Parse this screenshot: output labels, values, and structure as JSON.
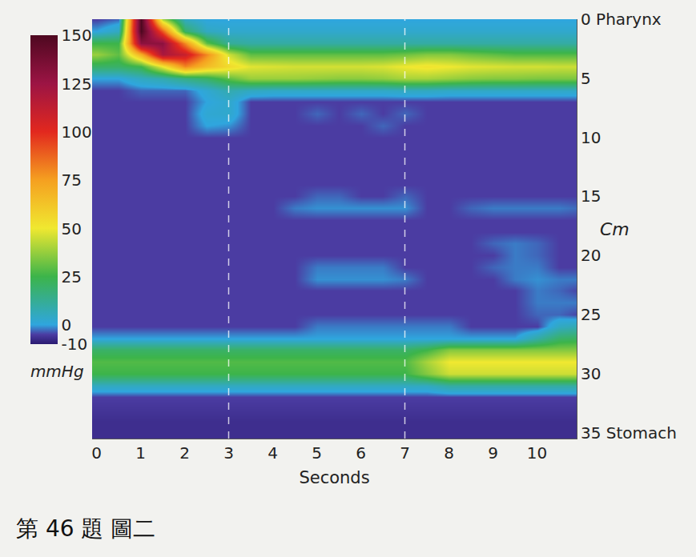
{
  "chart_data": {
    "type": "heatmap",
    "x_label": "Seconds",
    "y_label": "Cm",
    "xlim": [
      -0.1,
      10.9
    ],
    "xticks": [
      0,
      1,
      2,
      3,
      4,
      5,
      6,
      7,
      8,
      9,
      10
    ],
    "ylim": [
      35.5,
      0
    ],
    "yticks": [
      {
        "value": 0,
        "label": "0 Pharynx"
      },
      5,
      10,
      15,
      20,
      25,
      30,
      {
        "value": 35,
        "label": "35 Stomach"
      }
    ],
    "dashed_lines_x": [
      3,
      7
    ],
    "colorbar": {
      "range": [
        -10,
        150
      ],
      "ticks": [
        -10,
        0,
        25,
        50,
        75,
        100,
        125,
        150
      ],
      "label": "mmHg"
    },
    "x": [
      0,
      0.5,
      1,
      1.5,
      2,
      2.5,
      3,
      3.5,
      4,
      4.5,
      5,
      5.5,
      6,
      6.5,
      7,
      7.5,
      8,
      8.5,
      9,
      9.5,
      10,
      10.5,
      11
    ],
    "y": [
      0,
      1,
      2,
      3,
      4,
      5,
      6,
      7,
      8,
      9,
      10,
      11,
      12,
      13,
      14,
      15,
      16,
      17,
      18,
      19,
      20,
      21,
      22,
      23,
      24,
      25,
      26,
      27,
      28,
      29,
      30,
      31,
      32,
      33,
      34,
      35
    ],
    "z": [
      [
        -5,
        -3,
        150,
        40,
        5,
        0,
        0,
        0,
        0,
        0,
        0,
        0,
        0,
        0,
        0,
        0,
        0,
        0,
        0,
        0,
        0,
        0,
        0
      ],
      [
        0,
        5,
        150,
        90,
        20,
        5,
        3,
        3,
        3,
        3,
        3,
        3,
        3,
        3,
        3,
        3,
        3,
        3,
        3,
        3,
        3,
        3,
        3
      ],
      [
        25,
        25,
        130,
        130,
        80,
        30,
        12,
        10,
        10,
        10,
        10,
        10,
        10,
        10,
        10,
        10,
        10,
        10,
        10,
        10,
        10,
        10,
        10
      ],
      [
        38,
        30,
        70,
        120,
        110,
        80,
        45,
        30,
        30,
        30,
        30,
        30,
        30,
        30,
        32,
        35,
        35,
        32,
        30,
        28,
        28,
        28,
        28
      ],
      [
        20,
        20,
        25,
        50,
        80,
        65,
        55,
        48,
        47,
        46,
        46,
        46,
        46,
        47,
        50,
        52,
        50,
        48,
        47,
        46,
        46,
        45,
        45
      ],
      [
        0,
        0,
        5,
        8,
        15,
        20,
        30,
        38,
        38,
        38,
        37,
        36,
        36,
        37,
        40,
        40,
        38,
        36,
        35,
        35,
        34,
        34,
        34
      ],
      [
        -5,
        -5,
        -3,
        -3,
        -3,
        2,
        8,
        5,
        4,
        4,
        4,
        4,
        4,
        4,
        5,
        5,
        4,
        4,
        4,
        4,
        4,
        4,
        4
      ],
      [
        -5,
        -5,
        -5,
        -5,
        -5,
        0,
        3,
        -5,
        -5,
        -5,
        -5,
        -5,
        -5,
        -5,
        -5,
        -5,
        -5,
        -5,
        -5,
        -5,
        -5,
        -5,
        -5
      ],
      [
        -5,
        -5,
        -5,
        -5,
        -5,
        2,
        3,
        -5,
        -5,
        -5,
        -3,
        -5,
        -3,
        -5,
        -3,
        -5,
        -5,
        -5,
        -5,
        -5,
        -5,
        -5,
        -5
      ],
      [
        -5,
        -5,
        -5,
        -5,
        -5,
        0,
        -1,
        -5,
        -5,
        -5,
        -5,
        -5,
        -5,
        -3,
        -5,
        -5,
        -5,
        -5,
        -5,
        -5,
        -5,
        -5,
        -5
      ],
      [
        -5,
        -5,
        -5,
        -5,
        -5,
        -5,
        -5,
        -5,
        -5,
        -5,
        -5,
        -5,
        -5,
        -5,
        -5,
        -5,
        -5,
        -5,
        -5,
        -5,
        -5,
        -5,
        -5
      ],
      [
        -5,
        -5,
        -5,
        -5,
        -5,
        -5,
        -5,
        -5,
        -5,
        -5,
        -5,
        -5,
        -5,
        -5,
        -5,
        -5,
        -5,
        -5,
        -5,
        -5,
        -5,
        -5,
        -5
      ],
      [
        -5,
        -5,
        -5,
        -5,
        -5,
        -5,
        -5,
        -5,
        -5,
        -5,
        -5,
        -5,
        -5,
        -5,
        -5,
        -5,
        -5,
        -5,
        -5,
        -5,
        -5,
        -5,
        -5
      ],
      [
        -5,
        -5,
        -5,
        -5,
        -5,
        -5,
        -5,
        -5,
        -5,
        -5,
        -5,
        -5,
        -5,
        -5,
        -5,
        -5,
        -5,
        -5,
        -5,
        -5,
        -5,
        -5,
        -5
      ],
      [
        -5,
        -5,
        -5,
        -5,
        -5,
        -5,
        -5,
        -5,
        -5,
        -5,
        -5,
        -5,
        -5,
        -5,
        -5,
        -5,
        -5,
        -5,
        -5,
        -5,
        -5,
        -5,
        -5
      ],
      [
        -5,
        -5,
        -5,
        -5,
        -5,
        -5,
        -5,
        -5,
        -5,
        -5,
        -3,
        -3,
        -5,
        -5,
        -3,
        -5,
        -5,
        -5,
        -5,
        -5,
        -5,
        -5,
        -5
      ],
      [
        -5,
        -5,
        -5,
        -5,
        -5,
        -5,
        -5,
        -5,
        -5,
        -2,
        -1,
        -1,
        -1,
        -1,
        -1,
        -5,
        -5,
        -3,
        -2,
        -2,
        -2,
        -2,
        -3
      ],
      [
        -5,
        -5,
        -5,
        -5,
        -5,
        -5,
        -5,
        -5,
        -5,
        -5,
        -5,
        -5,
        -5,
        -5,
        -5,
        -5,
        -5,
        -5,
        -5,
        -5,
        -5,
        -5,
        -5
      ],
      [
        -5,
        -5,
        -5,
        -5,
        -5,
        -5,
        -5,
        -5,
        -5,
        -5,
        -5,
        -5,
        -5,
        -5,
        -5,
        -5,
        -5,
        -5,
        -5,
        -5,
        -5,
        -5,
        -5
      ],
      [
        -5,
        -5,
        -5,
        -5,
        -5,
        -5,
        -5,
        -5,
        -5,
        -5,
        -5,
        -5,
        -5,
        -5,
        -5,
        -5,
        -5,
        -5,
        -3,
        -2,
        -3,
        -5,
        -5
      ],
      [
        -5,
        -5,
        -5,
        -5,
        -5,
        -5,
        -5,
        -5,
        -5,
        -5,
        -5,
        -5,
        -5,
        -5,
        -5,
        -5,
        -5,
        -5,
        -5,
        -2,
        -3,
        -5,
        -5
      ],
      [
        -5,
        -5,
        -5,
        -5,
        -5,
        -5,
        -5,
        -5,
        -5,
        -5,
        -2,
        -2,
        -2,
        -2,
        -5,
        -5,
        -5,
        -5,
        -3,
        -2,
        -2,
        -5,
        -5
      ],
      [
        -5,
        -5,
        -5,
        -5,
        -5,
        -5,
        -5,
        -5,
        -5,
        -5,
        -1,
        -1,
        -1,
        -1,
        -2,
        -5,
        -5,
        -5,
        -5,
        -2,
        -1,
        -2,
        -2
      ],
      [
        -5,
        -5,
        -5,
        -5,
        -5,
        -5,
        -5,
        -5,
        -5,
        -5,
        -5,
        -5,
        -5,
        -5,
        -5,
        -5,
        -5,
        -5,
        -5,
        -5,
        -2,
        -3,
        -5
      ],
      [
        -5,
        -5,
        -5,
        -5,
        -5,
        -5,
        -5,
        -5,
        -5,
        -5,
        -5,
        -5,
        -5,
        -5,
        -5,
        -5,
        -5,
        -5,
        -5,
        -5,
        -2,
        -2,
        -2
      ],
      [
        -5,
        -5,
        -5,
        -5,
        -5,
        -5,
        -5,
        -5,
        -5,
        -5,
        -5,
        -5,
        -5,
        -5,
        -5,
        -5,
        -5,
        -5,
        -5,
        -5,
        -3,
        -3,
        -5
      ],
      [
        -5,
        -5,
        -5,
        -5,
        -5,
        -5,
        -5,
        -5,
        -5,
        -5,
        -2,
        -2,
        -2,
        -2,
        -2,
        -2,
        -2,
        -5,
        -5,
        -5,
        -5,
        5,
        8
      ],
      [
        0,
        0,
        0,
        0,
        0,
        0,
        0,
        0,
        0,
        0,
        0,
        0,
        0,
        0,
        0,
        0,
        0,
        0,
        0,
        0,
        10,
        20,
        22
      ],
      [
        20,
        20,
        20,
        20,
        20,
        20,
        20,
        20,
        20,
        20,
        20,
        20,
        20,
        20,
        20,
        25,
        35,
        35,
        35,
        35,
        35,
        35,
        35
      ],
      [
        28,
        28,
        28,
        28,
        28,
        28,
        28,
        28,
        28,
        28,
        28,
        28,
        28,
        28,
        28,
        40,
        50,
        50,
        50,
        50,
        50,
        50,
        50
      ],
      [
        25,
        25,
        25,
        25,
        25,
        25,
        25,
        25,
        25,
        25,
        25,
        25,
        25,
        25,
        25,
        35,
        45,
        45,
        45,
        45,
        45,
        45,
        45
      ],
      [
        5,
        5,
        5,
        5,
        5,
        5,
        5,
        5,
        5,
        5,
        5,
        5,
        5,
        5,
        5,
        5,
        10,
        10,
        10,
        10,
        10,
        10,
        10
      ],
      [
        -5,
        -5,
        -5,
        -5,
        -5,
        -5,
        -5,
        -5,
        -5,
        -5,
        -5,
        -5,
        -5,
        -5,
        -5,
        -5,
        -5,
        -5,
        -5,
        -5,
        -5,
        -5,
        -5
      ],
      [
        -6,
        -6,
        -6,
        -6,
        -6,
        -6,
        -6,
        -6,
        -6,
        -6,
        -6,
        -6,
        -6,
        -6,
        -6,
        -6,
        -6,
        -6,
        -6,
        -6,
        -6,
        -6,
        -6
      ],
      [
        -7,
        -7,
        -7,
        -7,
        -7,
        -7,
        -7,
        -7,
        -7,
        -7,
        -7,
        -7,
        -7,
        -7,
        -7,
        -7,
        -7,
        -7,
        -7,
        -7,
        -7,
        -7,
        -7
      ],
      [
        -7,
        -7,
        -7,
        -7,
        -7,
        -7,
        -7,
        -7,
        -7,
        -7,
        -7,
        -7,
        -7,
        -7,
        -7,
        -7,
        -7,
        -7,
        -7,
        -7,
        -7,
        -7,
        -7
      ]
    ]
  },
  "caption": "第 46 題 圖二"
}
